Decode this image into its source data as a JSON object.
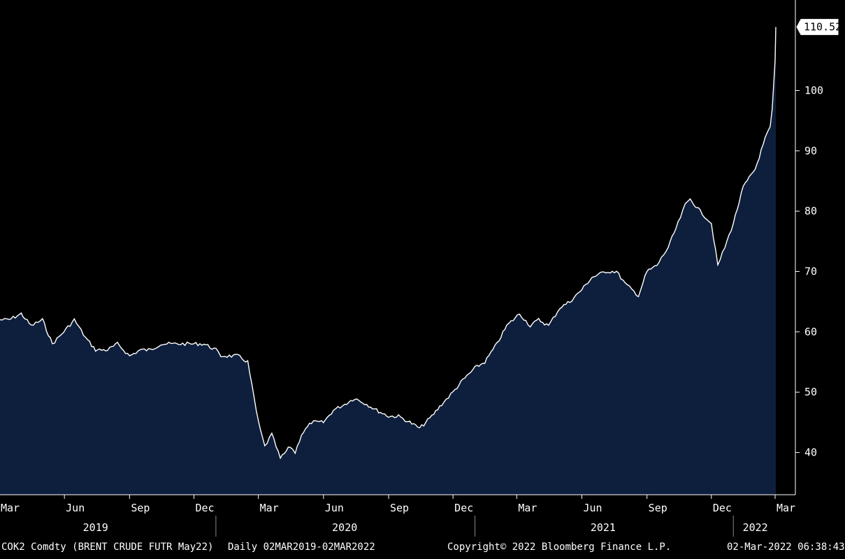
{
  "chart_data": {
    "type": "area",
    "title": "",
    "ylabel": "",
    "xlabel": "",
    "ylim": [
      33,
      115
    ],
    "yticks": [
      40,
      50,
      60,
      70,
      80,
      90,
      100
    ],
    "x_tick_labels": [
      "Mar",
      "Jun",
      "Sep",
      "Dec",
      "Mar",
      "Jun",
      "Sep",
      "Dec",
      "Mar",
      "Jun",
      "Sep",
      "Dec",
      "Mar"
    ],
    "year_labels": [
      "2019",
      "2020",
      "2021",
      "2022"
    ],
    "last_value_label": "110.52",
    "grid": false,
    "colors": {
      "background": "#000000",
      "area_fill": "#0d1f3c",
      "line": "#ffffff",
      "axis": "#ffffff"
    },
    "series": [
      {
        "x": [
          "2019-03-02",
          "2019-03-15",
          "2019-04-01",
          "2019-04-15",
          "2019-05-01",
          "2019-05-15",
          "2019-05-31",
          "2019-06-15",
          "2019-07-01",
          "2019-07-15",
          "2019-08-01",
          "2019-08-15",
          "2019-09-01",
          "2019-09-16",
          "2019-10-01",
          "2019-10-15",
          "2019-11-01",
          "2019-11-15",
          "2019-12-01",
          "2019-12-15",
          "2020-01-01",
          "2020-01-08",
          "2020-01-20",
          "2020-02-01",
          "2020-02-15",
          "2020-03-01",
          "2020-03-10",
          "2020-03-20",
          "2020-04-01",
          "2020-04-15",
          "2020-04-22",
          "2020-05-01",
          "2020-05-15",
          "2020-06-01",
          "2020-06-15",
          "2020-07-01",
          "2020-07-15",
          "2020-08-01",
          "2020-08-15",
          "2020-09-01",
          "2020-09-15",
          "2020-10-01",
          "2020-10-15",
          "2020-11-01",
          "2020-11-15",
          "2020-12-01",
          "2020-12-15",
          "2021-01-01",
          "2021-01-15",
          "2021-02-01",
          "2021-02-15",
          "2021-03-05",
          "2021-03-20",
          "2021-04-01",
          "2021-04-15",
          "2021-05-01",
          "2021-05-15",
          "2021-06-01",
          "2021-06-15",
          "2021-07-05",
          "2021-07-20",
          "2021-08-01",
          "2021-08-20",
          "2021-09-01",
          "2021-09-15",
          "2021-10-01",
          "2021-10-15",
          "2021-10-25",
          "2021-11-01",
          "2021-11-15",
          "2021-12-01",
          "2021-12-10",
          "2021-12-20",
          "2022-01-01",
          "2022-01-15",
          "2022-02-01",
          "2022-02-15",
          "2022-02-22",
          "2022-02-25",
          "2022-03-01",
          "2022-03-02"
        ],
        "values": [
          62,
          62,
          63,
          61,
          62,
          58,
          60,
          62,
          59,
          57,
          57,
          58,
          56,
          57,
          57,
          58,
          58,
          58,
          58,
          58,
          57,
          56,
          56,
          56,
          55,
          45,
          41,
          43,
          39,
          41,
          40,
          43,
          45,
          45,
          47,
          48,
          49,
          48,
          47,
          46,
          46,
          45,
          44,
          46,
          48,
          50,
          52,
          54,
          55,
          58,
          61,
          63,
          61,
          62,
          61,
          64,
          65,
          67,
          69,
          70,
          70,
          68,
          66,
          70,
          71,
          74,
          78,
          81,
          82,
          80,
          78,
          71,
          74,
          78,
          84,
          87,
          92,
          94,
          97,
          105,
          110.52
        ]
      }
    ]
  },
  "footer": {
    "ticker": "COK2 Comdty (BRENT CRUDE FUTR  May22)",
    "range": "Daily 02MAR2019-02MAR2022",
    "copyright": "Copyright© 2022 Bloomberg Finance L.P.",
    "timestamp": "02-Mar-2022 06:38:43"
  }
}
